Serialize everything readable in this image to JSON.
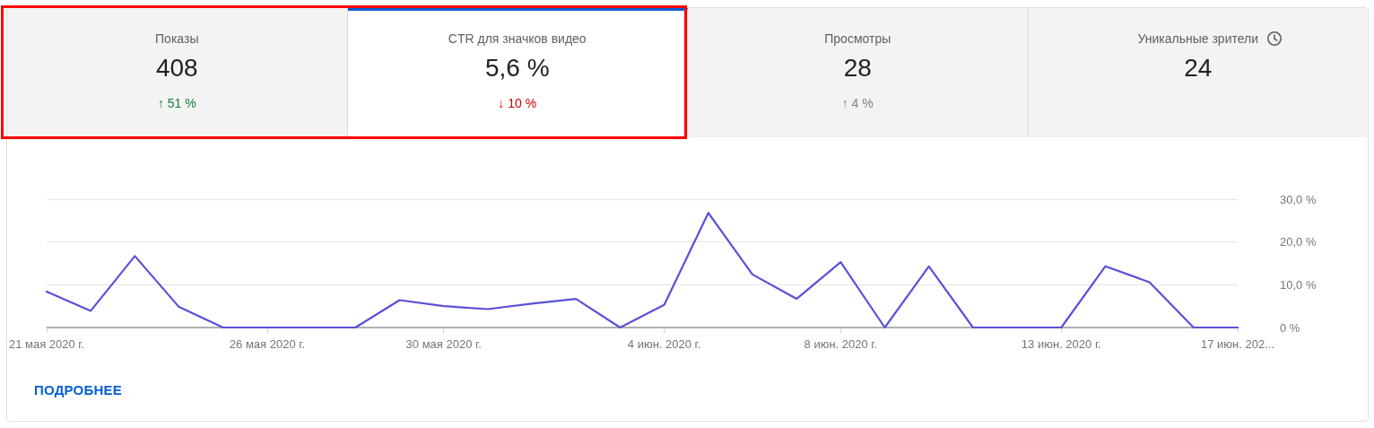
{
  "chart_data": [
    {
      "type": "other",
      "title": "Показы",
      "annotations": [
        "408",
        "↑ 51 %"
      ],
      "color": "#188038"
    },
    {
      "type": "other",
      "title": "CTR для значков видео",
      "annotations": [
        "5,6 %",
        "↓ 10 %"
      ],
      "color": "#cc0000"
    },
    {
      "type": "other",
      "title": "Просмотры",
      "annotations": [
        "28",
        "↑ 4 %"
      ],
      "color": "#808080"
    },
    {
      "type": "other",
      "title": "Уникальные зрители",
      "annotations": [
        "24"
      ]
    },
    {
      "type": "line",
      "categories": [
        "21 мая 2020 г.",
        null,
        null,
        null,
        null,
        "26 мая 2020 г.",
        null,
        null,
        null,
        "30 мая 2020 г.",
        null,
        null,
        null,
        null,
        "4 июн. 2020 г.",
        null,
        null,
        null,
        "8 июн. 2020 г.",
        null,
        null,
        null,
        null,
        "13 июн. 2020 г.",
        null,
        null,
        null,
        "17 июн. 202..."
      ],
      "series": [
        {
          "color": "#5a50d8",
          "values": [
            8.4,
            3.9,
            16.7,
            4.8,
            0,
            0,
            0,
            0,
            6.4,
            5.0,
            4.3,
            5.6,
            6.7,
            0,
            5.3,
            26.8,
            12.4,
            6.7,
            15.3,
            0,
            14.3,
            0,
            0,
            0,
            14.3,
            10.6,
            0,
            0
          ]
        }
      ],
      "ylim": [
        0,
        30
      ],
      "yticks": [
        {
          "value": 0,
          "label": "0 %"
        },
        {
          "value": 10,
          "label": "10,0 %"
        },
        {
          "value": 20,
          "label": "20,0 %"
        },
        {
          "value": 30,
          "label": "30,0 %"
        }
      ],
      "grid": "y",
      "marker": "none",
      "line_style": "solid",
      "annotations": [
        "ПОДРОБНЕЕ"
      ]
    }
  ]
}
